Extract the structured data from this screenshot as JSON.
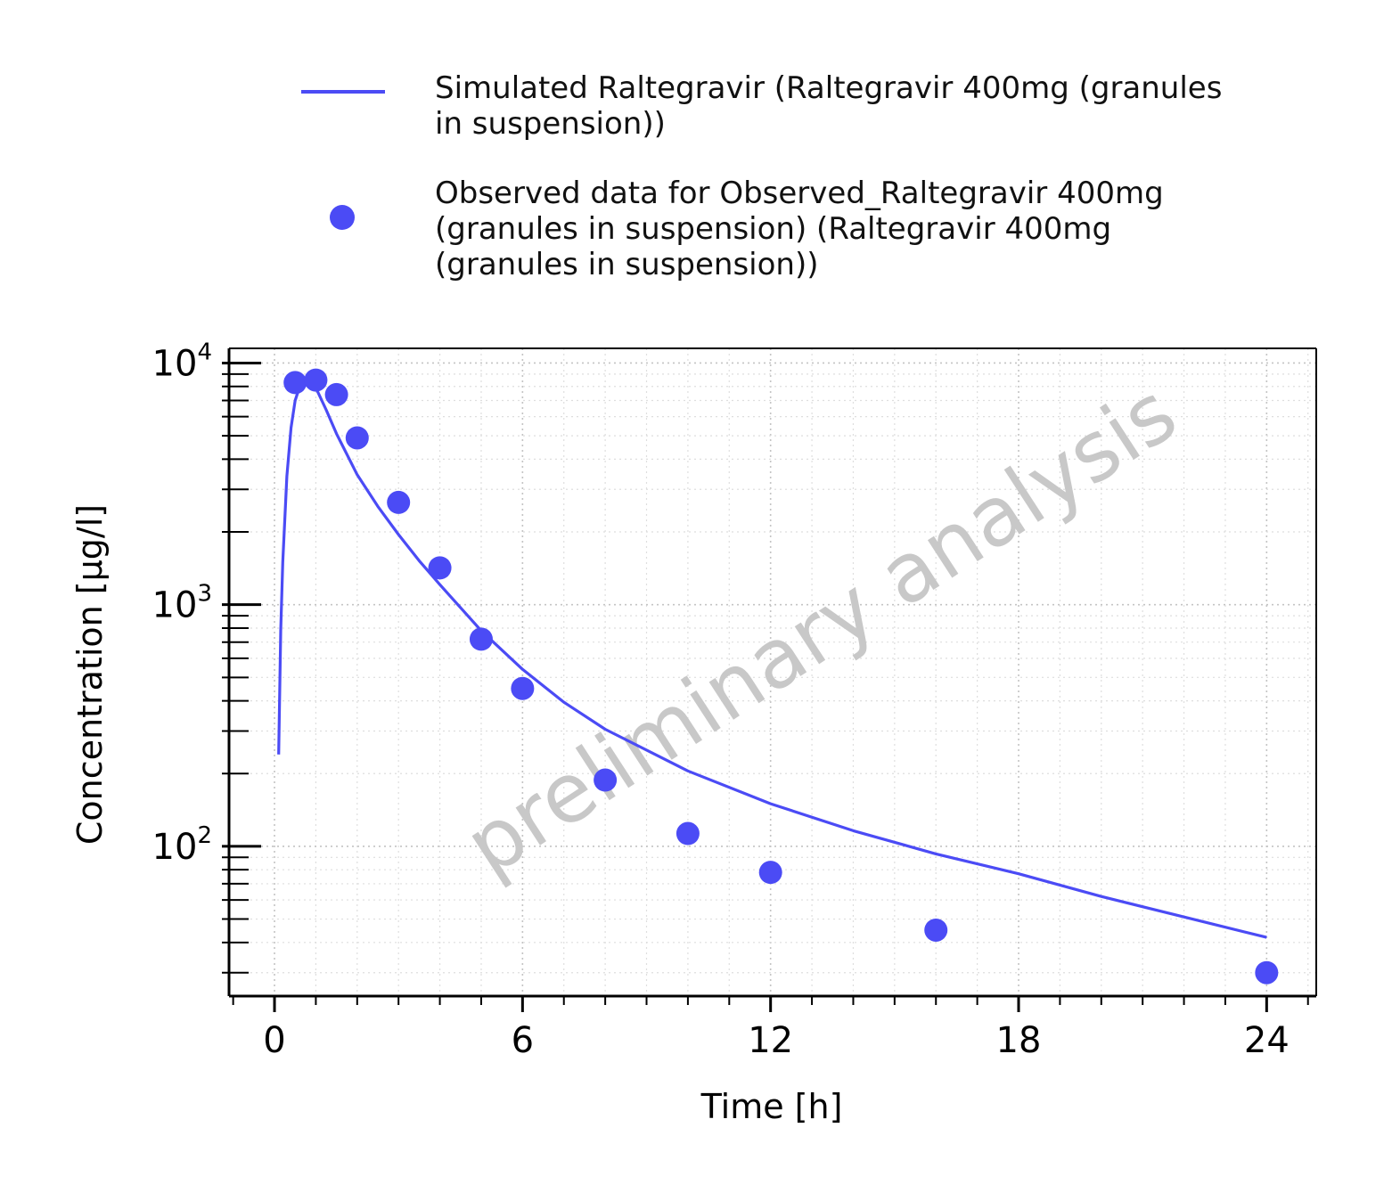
{
  "legend": {
    "simulated_line1": "Simulated Raltegravir (Raltegravir 400mg (granules",
    "simulated_line2": "in suspension))",
    "observed_line1": "Observed data for Observed_Raltegravir 400mg",
    "observed_line2": "(granules in suspension) (Raltegravir 400mg",
    "observed_line3": "(granules in suspension))"
  },
  "watermark": "preliminary analysis",
  "colors": {
    "series": "#4b4bf5",
    "watermark": "#c8c8c8"
  },
  "chart_data": {
    "type": "line",
    "xlabel": "Time [h]",
    "ylabel": "Concentration [µg/l]",
    "xlim": [
      -1.1,
      25.2
    ],
    "ylim": [
      24,
      11500
    ],
    "yscale": "log",
    "xticks": [
      0,
      6,
      12,
      18,
      24
    ],
    "xtick_labels": [
      "0",
      "6",
      "12",
      "18",
      "24"
    ],
    "yticks": [
      100,
      1000,
      10000
    ],
    "ytick_labels": [
      {
        "base": "10",
        "exp": "2"
      },
      {
        "base": "10",
        "exp": "3"
      },
      {
        "base": "10",
        "exp": "4"
      }
    ],
    "grid": true,
    "legend_position": "top",
    "series": [
      {
        "name": "Simulated Raltegravir (Raltegravir 400mg (granules in suspension))",
        "kind": "line",
        "x": [
          0.1,
          0.15,
          0.2,
          0.3,
          0.4,
          0.5,
          0.6,
          0.75,
          0.9,
          1.0,
          1.25,
          1.5,
          2.0,
          2.5,
          3.0,
          3.5,
          4.0,
          5.0,
          6.0,
          7.0,
          8.0,
          10.0,
          12.0,
          14.0,
          16.0,
          18.0,
          20.0,
          22.0,
          24.0
        ],
        "y": [
          240,
          780,
          1500,
          3400,
          5400,
          7000,
          7900,
          8400,
          8200,
          7900,
          6400,
          5100,
          3450,
          2550,
          1950,
          1520,
          1210,
          780,
          540,
          395,
          305,
          205,
          150,
          116,
          93,
          77,
          62,
          51,
          42
        ]
      },
      {
        "name": "Observed data for Observed_Raltegravir 400mg (granules in suspension) (Raltegravir 400mg (granules in suspension))",
        "kind": "scatter",
        "x": [
          0.5,
          1.0,
          1.5,
          2.0,
          3.0,
          4.0,
          5.0,
          6.0,
          8.0,
          10.0,
          12.0,
          16.0,
          24.0
        ],
        "y": [
          8300,
          8500,
          7400,
          4900,
          2650,
          1420,
          720,
          450,
          188,
          113,
          78,
          45,
          30
        ]
      }
    ]
  }
}
